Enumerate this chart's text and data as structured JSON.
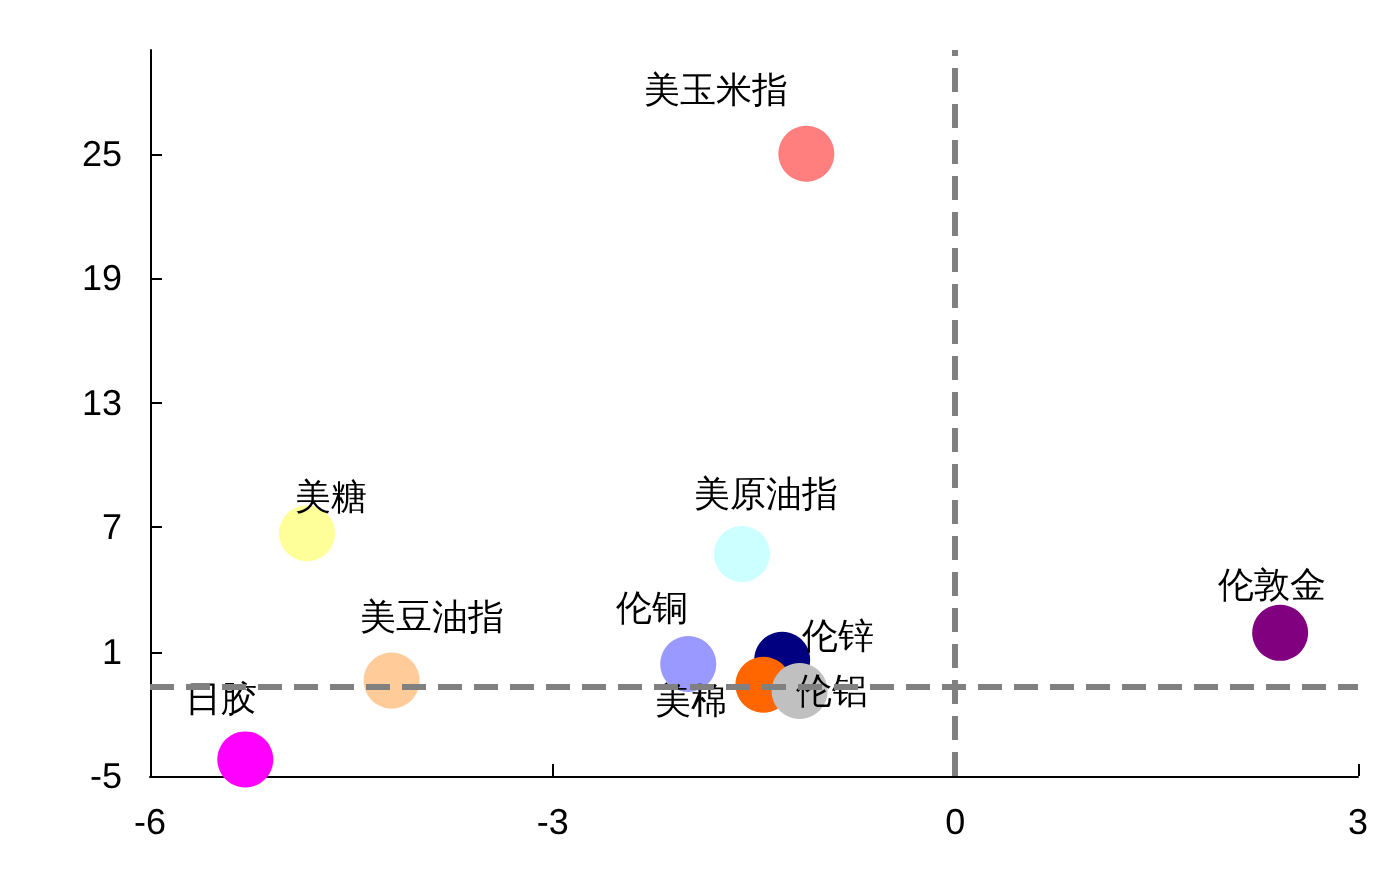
{
  "chart_data": {
    "type": "scatter",
    "marker": "circle",
    "legend": false,
    "grid": false,
    "xlim": [
      -6,
      3
    ],
    "xticks": [
      -6,
      -3,
      0,
      3
    ],
    "ylim": [
      -5,
      30
    ],
    "yticks": [
      -5,
      1,
      7,
      13,
      19,
      25
    ],
    "ref_lines": [
      {
        "axis": "x",
        "value": 0,
        "color": "#808080",
        "line_style": "dashed"
      },
      {
        "axis": "y",
        "value": -0.7,
        "color": "#808080",
        "line_style": "dashed"
      }
    ],
    "series": [
      {
        "name": "美玉米指",
        "color": "#ff7f7f",
        "x": [
          -1.11
        ],
        "values": [
          25
        ]
      },
      {
        "name": "美糖",
        "color": "#ffff99",
        "x": [
          -4.83
        ],
        "values": [
          6.7
        ]
      },
      {
        "name": "美原油指",
        "color": "#ccffff",
        "x": [
          -1.59
        ],
        "values": [
          5.7
        ]
      },
      {
        "name": "美豆油指",
        "color": "#ffcc99",
        "x": [
          -4.2
        ],
        "values": [
          -0.4
        ]
      },
      {
        "name": "伦铜",
        "color": "#9999ff",
        "x": [
          -1.99
        ],
        "values": [
          0.4
        ]
      },
      {
        "name": "伦锌",
        "color": "#000080",
        "x": [
          -1.29
        ],
        "values": [
          0.6
        ]
      },
      {
        "name": "美棉",
        "color": "#ff6600",
        "x": [
          -1.43
        ],
        "values": [
          -0.6
        ]
      },
      {
        "name": "伦铝",
        "color": "#c0c0c0",
        "x": [
          -1.16
        ],
        "values": [
          -0.9
        ]
      },
      {
        "name": "伦敦金",
        "color": "#800080",
        "x": [
          2.42
        ],
        "values": [
          1.9
        ]
      },
      {
        "name": "日胶",
        "color": "#ff00ff",
        "x": [
          -5.29
        ],
        "values": [
          -4.2
        ]
      }
    ]
  }
}
